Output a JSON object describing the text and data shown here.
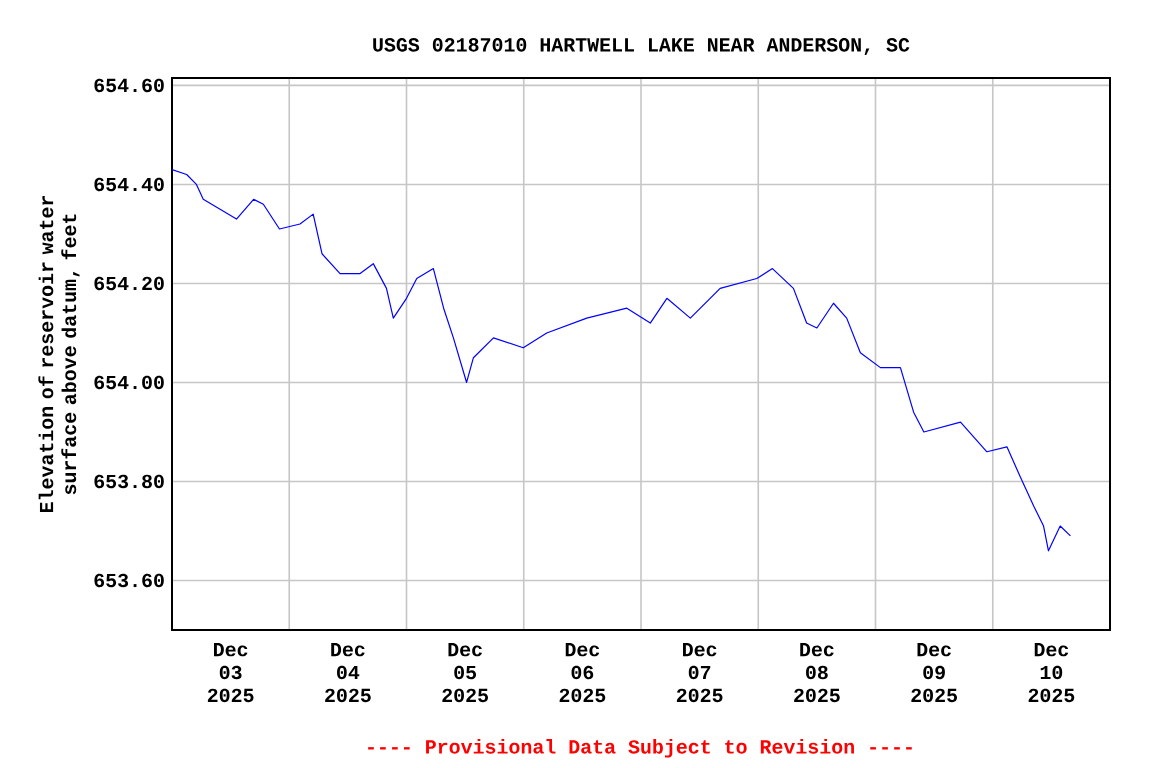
{
  "chart_data": {
    "type": "line",
    "title": "USGS 02187010 HARTWELL LAKE NEAR ANDERSON, SC",
    "ylabel": "Elevation of reservoir water surface above datum, feet",
    "annotations": [
      "---- Provisional Data Subject to Revision ----"
    ],
    "grid": true,
    "marker": "none",
    "line_style": "solid",
    "xlim": [
      "2025-12-03T00:00",
      "2025-12-11T00:00"
    ],
    "xticks": [
      {
        "value": "2025-12-03T12:00",
        "label": "Dec 03 2025"
      },
      {
        "value": "2025-12-04T12:00",
        "label": "Dec 04 2025"
      },
      {
        "value": "2025-12-05T12:00",
        "label": "Dec 05 2025"
      },
      {
        "value": "2025-12-06T12:00",
        "label": "Dec 06 2025"
      },
      {
        "value": "2025-12-07T12:00",
        "label": "Dec 07 2025"
      },
      {
        "value": "2025-12-08T12:00",
        "label": "Dec 08 2025"
      },
      {
        "value": "2025-12-09T12:00",
        "label": "Dec 09 2025"
      },
      {
        "value": "2025-12-10T12:00",
        "label": "Dec 10 2025"
      },
      {
        "value": "2025-12-04T00:00",
        "label": null
      },
      {
        "value": "2025-12-05T00:00",
        "label": null
      },
      {
        "value": "2025-12-06T00:00",
        "label": null
      },
      {
        "value": "2025-12-07T00:00",
        "label": null
      },
      {
        "value": "2025-12-08T00:00",
        "label": null
      },
      {
        "value": "2025-12-09T00:00",
        "label": null
      },
      {
        "value": "2025-12-10T00:00",
        "label": null
      }
    ],
    "ylim": [
      653.5,
      654.615
    ],
    "yticks": [
      {
        "value": 653.6,
        "label": "653.60"
      },
      {
        "value": 653.8,
        "label": "653.80"
      },
      {
        "value": 654.0,
        "label": "654.00"
      },
      {
        "value": 654.2,
        "label": "654.20"
      },
      {
        "value": 654.4,
        "label": "654.40"
      },
      {
        "value": 654.6,
        "label": "654.60"
      }
    ],
    "series": [
      {
        "color": "#0000ff",
        "x": [
          "2025-12-03T00:00",
          "2025-12-03T03:00",
          "2025-12-03T05:00",
          "2025-12-03T06:24",
          "2025-12-03T09:48",
          "2025-12-03T13:12",
          "2025-12-03T16:42",
          "2025-12-03T18:42",
          "2025-12-03T22:00",
          "2025-12-04T02:12",
          "2025-12-04T04:54",
          "2025-12-04T06:42",
          "2025-12-04T10:24",
          "2025-12-04T14:30",
          "2025-12-04T17:12",
          "2025-12-04T19:54",
          "2025-12-04T21:18",
          "2025-12-05T00:00",
          "2025-12-05T02:06",
          "2025-12-05T05:30",
          "2025-12-05T07:36",
          "2025-12-05T09:36",
          "2025-12-05T12:18",
          "2025-12-05T13:42",
          "2025-12-05T17:48",
          "2025-12-05T23:54",
          "2025-12-06T04:42",
          "2025-12-06T12:54",
          "2025-12-06T21:06",
          "2025-12-07T01:54",
          "2025-12-07T05:18",
          "2025-12-07T10:06",
          "2025-12-07T16:12",
          "2025-12-07T23:42",
          "2025-12-08T02:54",
          "2025-12-08T07:12",
          "2025-12-08T09:54",
          "2025-12-08T12:00",
          "2025-12-08T15:24",
          "2025-12-08T18:06",
          "2025-12-08T20:54",
          "2025-12-09T01:00",
          "2025-12-09T05:06",
          "2025-12-09T07:48",
          "2025-12-09T09:54",
          "2025-12-09T17:24",
          "2025-12-09T22:48",
          "2025-12-10T02:54",
          "2025-12-10T05:36",
          "2025-12-10T08:24",
          "2025-12-10T10:24",
          "2025-12-10T11:24",
          "2025-12-10T13:48",
          "2025-12-10T15:54"
        ],
        "values": [
          654.43,
          654.42,
          654.4,
          654.37,
          654.35,
          654.33,
          654.37,
          654.36,
          654.31,
          654.32,
          654.34,
          654.26,
          654.22,
          654.22,
          654.24,
          654.19,
          654.13,
          654.17,
          654.21,
          654.23,
          654.15,
          654.09,
          654.0,
          654.05,
          654.09,
          654.07,
          654.1,
          654.13,
          654.15,
          654.12,
          654.17,
          654.13,
          654.19,
          654.21,
          654.23,
          654.19,
          654.12,
          654.11,
          654.16,
          654.13,
          654.06,
          654.03,
          654.03,
          653.94,
          653.9,
          653.92,
          653.86,
          653.87,
          653.81,
          653.75,
          653.71,
          653.66,
          653.71,
          653.69
        ]
      }
    ]
  }
}
